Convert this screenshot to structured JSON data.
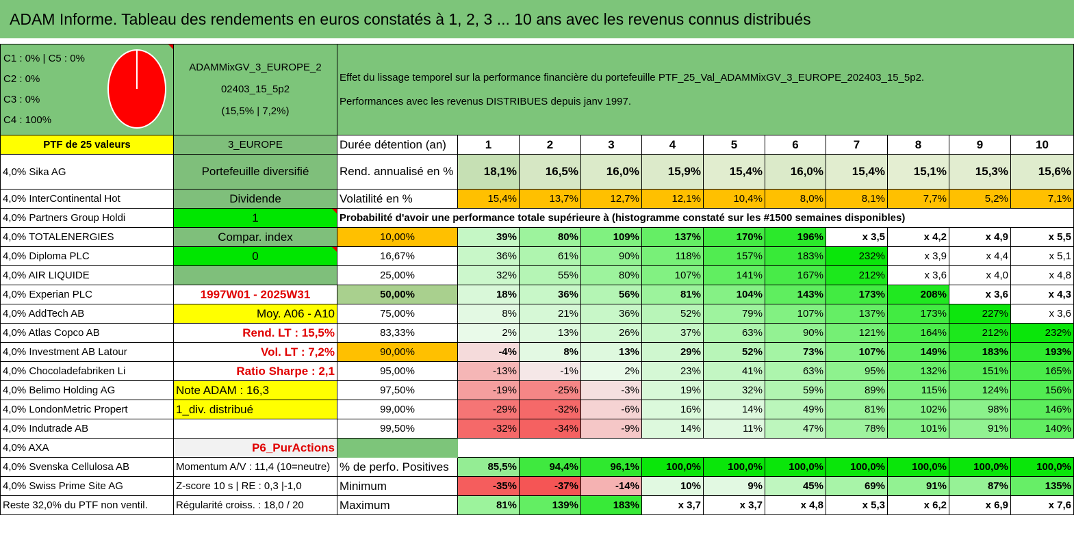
{
  "title": "ADAM Informe. Tableau des rendements en euros constatés à 1, 2, 3 ... 10 ans avec les revenus connus distribués",
  "classes": {
    "c1c5": "C1 : 0% | C5 : 0%",
    "c2": "C2 : 0%",
    "c3": "C3 : 0%",
    "c4": "C4 : 100%",
    "pie_color": "#ff0000"
  },
  "portfolio": {
    "name_line1": "ADAMMixGV_3_EUROPE_2",
    "name_line2": "02403_15_5p2",
    "stats": "(15,5% | 7,2%)",
    "desc_line1": "Effet du lissage temporel sur la performance financière du portefeuille PTF_25_Val_ADAMMixGV_3_EUROPE_202403_15_5p2.",
    "desc_line2": "Performances avec les revenus DISTRIBUES depuis janv 1997."
  },
  "header": {
    "ptf": "PTF de 25 valeurs",
    "zone": "3_EUROPE",
    "duration_label": "Durée détention (an)",
    "years": [
      "1",
      "2",
      "3",
      "4",
      "5",
      "6",
      "7",
      "8",
      "9",
      "10"
    ]
  },
  "holdings": [
    "4,0% Sika AG",
    "4,0% InterContinental Hot",
    "4,0% Partners Group Holdi",
    "4,0% TOTALENERGIES",
    "4,0% Diploma PLC",
    "4,0% AIR LIQUIDE",
    "4,0% Experian PLC",
    "4,0% AddTech AB",
    "4,0% Atlas Copco AB",
    "4,0% Investment AB Latour",
    "4,0% Chocoladefabriken Li",
    "4,0% Belimo Holding AG",
    "4,0% LondonMetric Propert",
    "4,0% Indutrade AB",
    "4,0% AXA",
    "4,0% Svenska Cellulosa AB",
    "4,0% Swiss Prime Site AG",
    "Reste 32,0% du PTF non ventil."
  ],
  "side": {
    "diversified": "Portefeuille diversifié",
    "dividend": "Dividende",
    "one": "1",
    "compar": "Compar. index",
    "zero": "0",
    "empty": "",
    "period": "1997W01 - 2025W31",
    "moy": "Moy. A06 - A10",
    "rend_lt": "Rend. LT : 15,5%",
    "vol_lt": "Vol. LT : 7,2%",
    "sharpe": "Ratio Sharpe : 2,1",
    "note": "Note ADAM : 16,3",
    "div": "1_div. distribué",
    "blank": "",
    "purchase": "P6_PurActions",
    "momentum": "Momentum A/V : 11,4 (10=neutre)",
    "zscore": "Z-score 10 s | RE : 0,3 |-1,0",
    "regularity": "Régularité croiss. : 18,0 / 20"
  },
  "rows": {
    "rend_label": "Rend. annualisé en %",
    "rend": [
      "18,1%",
      "16,5%",
      "16,0%",
      "15,9%",
      "15,4%",
      "16,0%",
      "15,4%",
      "15,1%",
      "15,3%",
      "15,6%"
    ],
    "vol_label": "Volatilité en %",
    "vol": [
      "15,4%",
      "13,7%",
      "12,7%",
      "12,1%",
      "10,4%",
      "8,0%",
      "8,1%",
      "7,7%",
      "5,2%",
      "7,1%"
    ],
    "prob_note": "Probabilité d'avoir une performance totale supérieure à (histogramme constaté sur les #1500 semaines disponibles)",
    "probs": [
      {
        "p": "10,00%",
        "v": [
          "39%",
          "80%",
          "109%",
          "137%",
          "170%",
          "196%",
          "x 3,5",
          "x 4,2",
          "x 4,9",
          "x 5,5"
        ]
      },
      {
        "p": "16,67%",
        "v": [
          "36%",
          "61%",
          "90%",
          "118%",
          "157%",
          "183%",
          "232%",
          "x 3,9",
          "x 4,4",
          "x 5,1"
        ]
      },
      {
        "p": "25,00%",
        "v": [
          "32%",
          "55%",
          "80%",
          "107%",
          "141%",
          "167%",
          "212%",
          "x 3,6",
          "x 4,0",
          "x 4,8"
        ]
      },
      {
        "p": "50,00%",
        "v": [
          "18%",
          "36%",
          "56%",
          "81%",
          "104%",
          "143%",
          "173%",
          "208%",
          "x 3,6",
          "x 4,3"
        ]
      },
      {
        "p": "75,00%",
        "v": [
          "8%",
          "21%",
          "36%",
          "52%",
          "79%",
          "107%",
          "137%",
          "173%",
          "227%",
          "x 3,6"
        ]
      },
      {
        "p": "83,33%",
        "v": [
          "2%",
          "13%",
          "26%",
          "37%",
          "63%",
          "90%",
          "121%",
          "164%",
          "212%",
          "232%"
        ]
      },
      {
        "p": "90,00%",
        "v": [
          "-4%",
          "8%",
          "13%",
          "29%",
          "52%",
          "73%",
          "107%",
          "149%",
          "183%",
          "193%"
        ]
      },
      {
        "p": "95,00%",
        "v": [
          "-13%",
          "-1%",
          "2%",
          "23%",
          "41%",
          "63%",
          "95%",
          "132%",
          "151%",
          "165%"
        ]
      },
      {
        "p": "97,50%",
        "v": [
          "-19%",
          "-25%",
          "-3%",
          "19%",
          "32%",
          "59%",
          "89%",
          "115%",
          "124%",
          "156%"
        ]
      },
      {
        "p": "99,00%",
        "v": [
          "-29%",
          "-32%",
          "-6%",
          "16%",
          "14%",
          "49%",
          "81%",
          "102%",
          "98%",
          "146%"
        ]
      },
      {
        "p": "99,50%",
        "v": [
          "-32%",
          "-34%",
          "-9%",
          "14%",
          "11%",
          "47%",
          "78%",
          "101%",
          "91%",
          "140%"
        ]
      }
    ],
    "pos_label": "% de perfo. Positives",
    "pos": [
      "85,5%",
      "94,4%",
      "96,1%",
      "100,0%",
      "100,0%",
      "100,0%",
      "100,0%",
      "100,0%",
      "100,0%",
      "100,0%"
    ],
    "min_label": "Minimum",
    "min": [
      "-35%",
      "-37%",
      "-14%",
      "10%",
      "9%",
      "45%",
      "69%",
      "91%",
      "87%",
      "135%"
    ],
    "max_label": "Maximum",
    "max": [
      "81%",
      "139%",
      "183%",
      "x 3,7",
      "x 3,7",
      "x 4,8",
      "x 5,3",
      "x 6,2",
      "x 6,9",
      "x 7,6"
    ]
  },
  "colors": {
    "title_bg": "#7dc57a",
    "yellow": "#ffff00",
    "orange": "#ffc000",
    "bright_green": "#00e600",
    "red_text": "#e00000"
  }
}
